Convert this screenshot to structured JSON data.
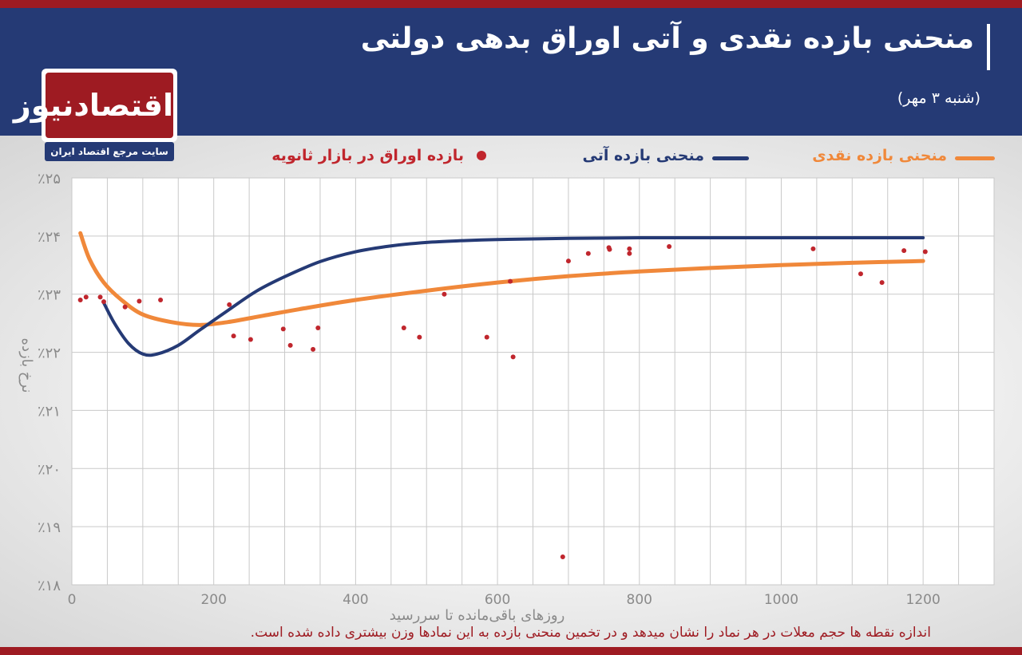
{
  "header": {
    "title": "منحنی بازده نقدی و آتی اوراق بدهی دولتی",
    "date": "(شنبه ۳ مهر)"
  },
  "logo": {
    "name": "اقتصادنیوز",
    "tagline": "سایت مرجع اقتصاد ایران"
  },
  "legend": {
    "spot": "منحنی بازده نقدی",
    "forward": "منحنی بازده آتی",
    "points": "بازده اوراق در بازار ثانویه"
  },
  "colors": {
    "spot": "#f0883a",
    "forward": "#253a75",
    "points": "#c0262d",
    "brand_red": "#9e1b22",
    "brand_blue": "#253a75"
  },
  "footnote": "اندازه نقطه ها حجم معلات در هر نماد را نشان میدهد و در تخمین منحنی بازده به این نمادها وزن بیشتری داده شده است.",
  "chart_data": {
    "type": "scatter",
    "xlabel": "روزهای باقی‌مانده تا سررسید",
    "ylabel": "نرخ بازده",
    "xlim": [
      0,
      1300
    ],
    "ylim": [
      18,
      25
    ],
    "x_ticks": [
      0,
      200,
      400,
      600,
      800,
      1000,
      1200
    ],
    "x_tick_labels": [
      "0",
      "200",
      "400",
      "600",
      "800",
      "1000",
      "1200"
    ],
    "y_ticks": [
      18,
      19,
      20,
      21,
      22,
      23,
      24,
      25
    ],
    "y_tick_labels": [
      "٪۱۸",
      "٪۱۹",
      "٪۲۰",
      "٪۲۱",
      "٪۲۲",
      "٪۲۳",
      "٪۲۴",
      "٪۲۵"
    ],
    "grid": true,
    "series": [
      {
        "name": "منحنی بازده نقدی",
        "kind": "line",
        "x": [
          12,
          25,
          45,
          70,
          100,
          140,
          180,
          220,
          270,
          320,
          400,
          500,
          600,
          700,
          800,
          900,
          1000,
          1100,
          1200
        ],
        "y": [
          24.05,
          23.6,
          23.2,
          22.9,
          22.65,
          22.52,
          22.47,
          22.52,
          22.63,
          22.74,
          22.9,
          23.06,
          23.2,
          23.31,
          23.39,
          23.45,
          23.5,
          23.54,
          23.57
        ]
      },
      {
        "name": "منحنی بازده آتی",
        "kind": "line",
        "x": [
          45,
          60,
          80,
          100,
          120,
          150,
          180,
          220,
          260,
          300,
          350,
          400,
          450,
          500,
          550,
          600,
          700,
          800,
          900,
          1000,
          1100,
          1200
        ],
        "y": [
          22.85,
          22.5,
          22.15,
          21.97,
          21.97,
          22.12,
          22.38,
          22.72,
          23.05,
          23.3,
          23.56,
          23.73,
          23.83,
          23.89,
          23.92,
          23.94,
          23.96,
          23.97,
          23.97,
          23.97,
          23.97,
          23.97
        ]
      },
      {
        "name": "بازده اوراق در بازار ثانویه",
        "kind": "scatter",
        "points": [
          [
            12,
            22.9
          ],
          [
            20,
            22.95
          ],
          [
            40,
            22.95
          ],
          [
            45,
            22.87
          ],
          [
            75,
            22.78
          ],
          [
            95,
            22.88
          ],
          [
            125,
            22.9
          ],
          [
            222,
            22.82
          ],
          [
            228,
            22.28
          ],
          [
            252,
            22.22
          ],
          [
            298,
            22.4
          ],
          [
            308,
            22.12
          ],
          [
            340,
            22.05
          ],
          [
            347,
            22.42
          ],
          [
            468,
            22.42
          ],
          [
            490,
            22.26
          ],
          [
            525,
            23.0
          ],
          [
            585,
            22.26
          ],
          [
            618,
            23.22
          ],
          [
            622,
            21.92
          ],
          [
            692,
            18.48
          ],
          [
            700,
            23.57
          ],
          [
            728,
            23.7
          ],
          [
            757,
            23.8
          ],
          [
            758,
            23.77
          ],
          [
            786,
            23.7
          ],
          [
            786,
            23.78
          ],
          [
            842,
            23.82
          ],
          [
            1045,
            23.78
          ],
          [
            1112,
            23.35
          ],
          [
            1142,
            23.2
          ],
          [
            1173,
            23.75
          ],
          [
            1203,
            23.73
          ]
        ]
      }
    ]
  }
}
